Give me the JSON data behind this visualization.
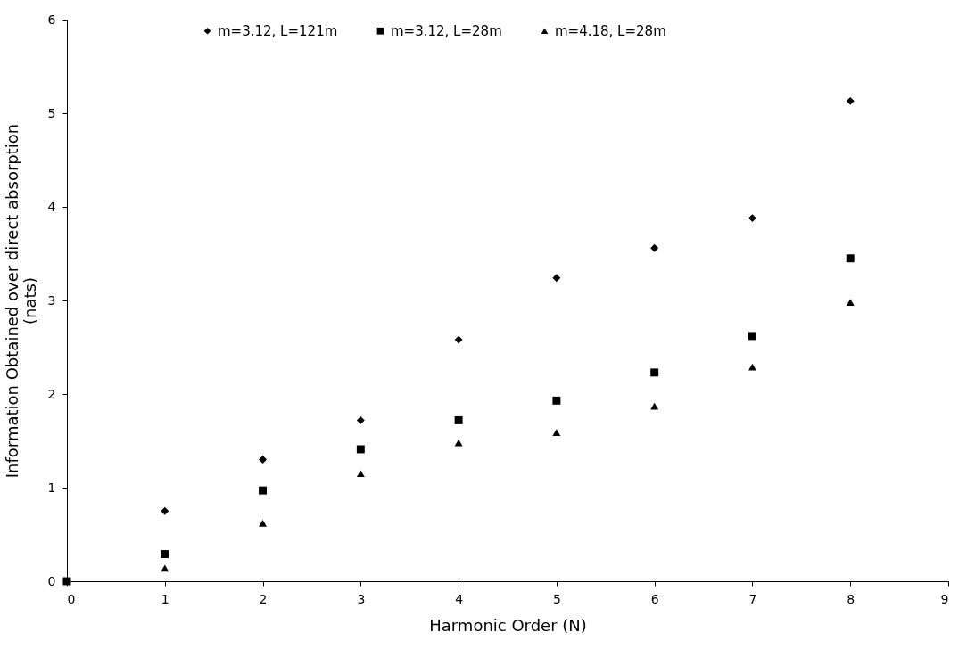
{
  "chart_data": {
    "type": "scatter",
    "xlabel": "Harmonic Order (N)",
    "ylabel": "Information Obtained over direct absorption (nats)",
    "x": [
      0,
      1,
      2,
      3,
      4,
      5,
      6,
      7,
      8
    ],
    "series": [
      {
        "name": "m=3.12, L=121m",
        "color": "#000000",
        "marker": "diamond",
        "values": [
          null,
          0.75,
          1.3,
          1.72,
          2.58,
          3.24,
          3.56,
          3.88,
          5.13
        ]
      },
      {
        "name": "m=3.12, L=28m",
        "color": "#000000",
        "marker": "square",
        "values": [
          0,
          0.29,
          0.97,
          1.41,
          1.72,
          1.93,
          2.23,
          2.62,
          3.45
        ]
      },
      {
        "name": "m=4.18, L=28m",
        "color": "#000000",
        "marker": "triangle",
        "values": [
          null,
          0.14,
          0.62,
          1.15,
          1.48,
          1.59,
          1.87,
          2.29,
          2.98
        ]
      }
    ],
    "xlim": [
      0,
      9
    ],
    "xticks": [
      0,
      1,
      2,
      3,
      4,
      5,
      6,
      7,
      8,
      9
    ],
    "ylim": [
      0,
      6
    ],
    "yticks": [
      0,
      1,
      2,
      3,
      4,
      5,
      6
    ],
    "grid": false,
    "legend": "top"
  }
}
